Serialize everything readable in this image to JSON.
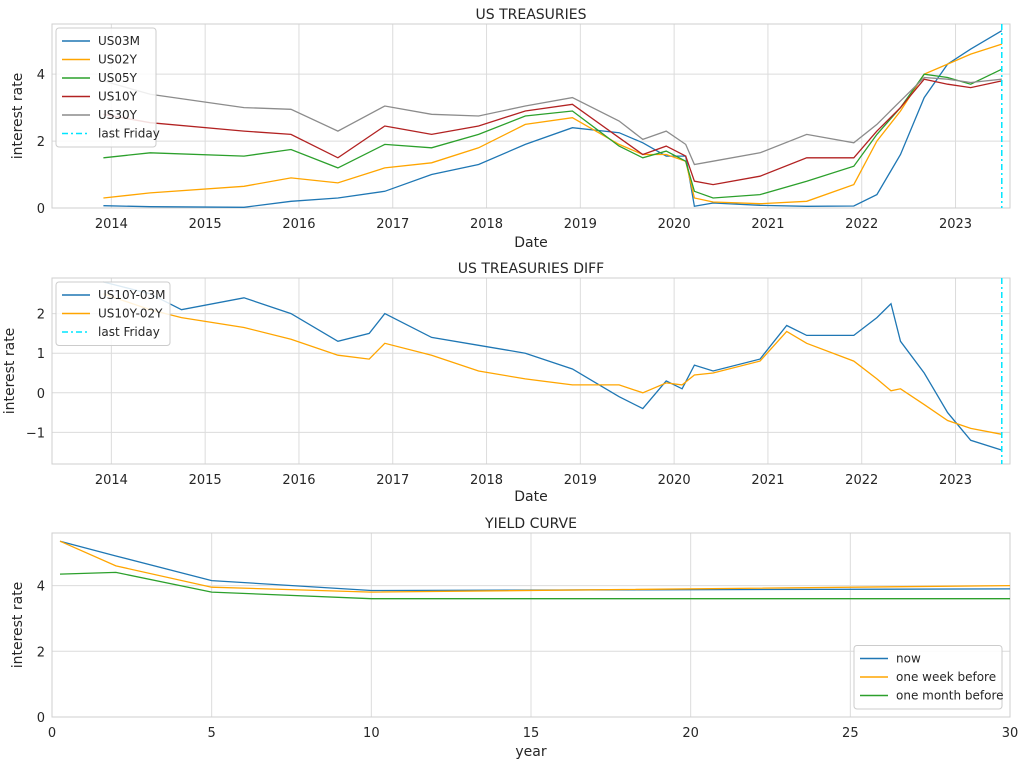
{
  "chart_data": [
    {
      "type": "line",
      "title": "US TREASURIES",
      "xlabel": "Date",
      "ylabel": "interest rate",
      "xlim": [
        "2013-05-15",
        "2023-08-01"
      ],
      "ylim": [
        0,
        5.5
      ],
      "x_ticks": [
        "2014",
        "2015",
        "2016",
        "2017",
        "2018",
        "2019",
        "2020",
        "2021",
        "2022",
        "2023"
      ],
      "y_ticks": [
        0,
        2,
        4
      ],
      "grid": true,
      "legend_position": "upper-left",
      "marker_line": {
        "name": "last Friday",
        "x": "2023-06-30",
        "color": "#00e5ff"
      },
      "series": [
        {
          "name": "US03M",
          "color": "#1f77b4",
          "x": [
            "2013-12-01",
            "2014-06-01",
            "2015-06-01",
            "2015-12-01",
            "2016-06-01",
            "2016-12-01",
            "2017-06-01",
            "2017-12-01",
            "2018-06-01",
            "2018-12-01",
            "2019-06-01",
            "2019-09-01",
            "2019-12-01",
            "2020-02-15",
            "2020-03-20",
            "2020-06-01",
            "2020-12-01",
            "2021-06-01",
            "2021-12-01",
            "2022-03-01",
            "2022-06-01",
            "2022-09-01",
            "2022-12-01",
            "2023-03-01",
            "2023-06-30"
          ],
          "y": [
            0.07,
            0.04,
            0.02,
            0.2,
            0.3,
            0.5,
            1.0,
            1.3,
            1.9,
            2.4,
            2.25,
            1.95,
            1.55,
            1.55,
            0.05,
            0.15,
            0.08,
            0.05,
            0.06,
            0.4,
            1.6,
            3.3,
            4.3,
            4.75,
            5.3
          ]
        },
        {
          "name": "US02Y",
          "color": "#ffa500",
          "x": [
            "2013-12-01",
            "2014-06-01",
            "2015-06-01",
            "2015-12-01",
            "2016-06-01",
            "2016-12-01",
            "2017-06-01",
            "2017-12-01",
            "2018-06-01",
            "2018-12-01",
            "2019-06-01",
            "2019-09-01",
            "2019-12-01",
            "2020-02-15",
            "2020-03-20",
            "2020-06-01",
            "2020-12-01",
            "2021-06-01",
            "2021-12-01",
            "2022-03-01",
            "2022-06-01",
            "2022-09-01",
            "2022-12-01",
            "2023-03-01",
            "2023-06-30"
          ],
          "y": [
            0.3,
            0.45,
            0.65,
            0.9,
            0.75,
            1.2,
            1.35,
            1.8,
            2.5,
            2.7,
            1.9,
            1.6,
            1.6,
            1.4,
            0.3,
            0.18,
            0.13,
            0.2,
            0.7,
            2.0,
            2.9,
            4.0,
            4.3,
            4.6,
            4.9
          ]
        },
        {
          "name": "US05Y",
          "color": "#2ca02c",
          "x": [
            "2013-12-01",
            "2014-06-01",
            "2015-06-01",
            "2015-12-01",
            "2016-06-01",
            "2016-12-01",
            "2017-06-01",
            "2017-12-01",
            "2018-06-01",
            "2018-12-01",
            "2019-06-01",
            "2019-09-01",
            "2019-12-01",
            "2020-02-15",
            "2020-03-20",
            "2020-06-01",
            "2020-12-01",
            "2021-06-01",
            "2021-12-01",
            "2022-03-01",
            "2022-06-01",
            "2022-09-01",
            "2022-12-01",
            "2023-03-01",
            "2023-06-30"
          ],
          "y": [
            1.5,
            1.65,
            1.55,
            1.75,
            1.2,
            1.9,
            1.8,
            2.2,
            2.75,
            2.9,
            1.85,
            1.5,
            1.7,
            1.4,
            0.5,
            0.3,
            0.4,
            0.8,
            1.25,
            2.2,
            3.0,
            4.0,
            3.9,
            3.7,
            4.15
          ]
        },
        {
          "name": "US10Y",
          "color": "#b22222",
          "x": [
            "2013-12-01",
            "2014-06-01",
            "2015-06-01",
            "2015-12-01",
            "2016-06-01",
            "2016-12-01",
            "2017-06-01",
            "2017-12-01",
            "2018-06-01",
            "2018-12-01",
            "2019-06-01",
            "2019-09-01",
            "2019-12-01",
            "2020-02-15",
            "2020-03-20",
            "2020-06-01",
            "2020-12-01",
            "2021-06-01",
            "2021-12-01",
            "2022-03-01",
            "2022-06-01",
            "2022-09-01",
            "2022-12-01",
            "2023-03-01",
            "2023-06-30"
          ],
          "y": [
            2.8,
            2.55,
            2.3,
            2.2,
            1.5,
            2.45,
            2.2,
            2.45,
            2.9,
            3.1,
            2.1,
            1.6,
            1.85,
            1.55,
            0.8,
            0.7,
            0.95,
            1.5,
            1.5,
            2.3,
            3.0,
            3.85,
            3.7,
            3.6,
            3.8
          ]
        },
        {
          "name": "US30Y",
          "color": "#8c8c8c",
          "x": [
            "2013-12-01",
            "2014-06-01",
            "2015-06-01",
            "2015-12-01",
            "2016-06-01",
            "2016-12-01",
            "2017-06-01",
            "2017-12-01",
            "2018-06-01",
            "2018-12-01",
            "2019-06-01",
            "2019-09-01",
            "2019-12-01",
            "2020-02-15",
            "2020-03-20",
            "2020-06-01",
            "2020-12-01",
            "2021-06-01",
            "2021-12-01",
            "2022-03-01",
            "2022-06-01",
            "2022-09-01",
            "2022-12-01",
            "2023-03-01",
            "2023-06-30"
          ],
          "y": [
            3.8,
            3.4,
            3.0,
            2.95,
            2.3,
            3.05,
            2.8,
            2.75,
            3.05,
            3.3,
            2.6,
            2.05,
            2.3,
            1.9,
            1.3,
            1.4,
            1.65,
            2.2,
            1.95,
            2.5,
            3.2,
            3.9,
            3.85,
            3.75,
            3.85
          ]
        }
      ]
    },
    {
      "type": "line",
      "title": "US TREASURIES DIFF",
      "xlabel": "Date",
      "ylabel": "interest rate",
      "xlim": [
        "2013-05-15",
        "2023-08-01"
      ],
      "ylim": [
        -1.8,
        2.9
      ],
      "x_ticks": [
        "2014",
        "2015",
        "2016",
        "2017",
        "2018",
        "2019",
        "2020",
        "2021",
        "2022",
        "2023"
      ],
      "y_ticks": [
        -1,
        0,
        1,
        2
      ],
      "grid": true,
      "legend_position": "upper-left",
      "marker_line": {
        "name": "last Friday",
        "x": "2023-06-30",
        "color": "#00e5ff"
      },
      "series": [
        {
          "name": "US10Y-03M",
          "color": "#1f77b4",
          "x": [
            "2013-12-01",
            "2014-06-01",
            "2014-10-01",
            "2015-06-01",
            "2015-12-01",
            "2016-06-01",
            "2016-10-01",
            "2016-12-01",
            "2017-06-01",
            "2017-12-01",
            "2018-06-01",
            "2018-12-01",
            "2019-06-01",
            "2019-09-01",
            "2019-12-01",
            "2020-02-01",
            "2020-03-20",
            "2020-06-01",
            "2020-12-01",
            "2021-03-15",
            "2021-06-01",
            "2021-12-01",
            "2022-03-01",
            "2022-04-25",
            "2022-06-01",
            "2022-09-01",
            "2022-12-01",
            "2023-03-01",
            "2023-06-30"
          ],
          "y": [
            2.8,
            2.5,
            2.1,
            2.4,
            2.0,
            1.3,
            1.5,
            2.0,
            1.4,
            1.2,
            1.0,
            0.6,
            -0.1,
            -0.4,
            0.3,
            0.1,
            0.7,
            0.55,
            0.85,
            1.7,
            1.45,
            1.45,
            1.9,
            2.25,
            1.3,
            0.5,
            -0.5,
            -1.2,
            -1.45
          ]
        },
        {
          "name": "US10Y-02Y",
          "color": "#ffa500",
          "x": [
            "2013-12-01",
            "2014-06-01",
            "2014-10-01",
            "2015-06-01",
            "2015-12-01",
            "2016-06-01",
            "2016-10-01",
            "2016-12-01",
            "2017-06-01",
            "2017-12-01",
            "2018-06-01",
            "2018-12-01",
            "2019-06-01",
            "2019-09-01",
            "2019-12-01",
            "2020-02-01",
            "2020-03-20",
            "2020-06-01",
            "2020-12-01",
            "2021-03-15",
            "2021-06-01",
            "2021-12-01",
            "2022-03-01",
            "2022-04-25",
            "2022-06-01",
            "2022-09-01",
            "2022-12-01",
            "2023-03-01",
            "2023-06-30"
          ],
          "y": [
            2.5,
            2.1,
            1.9,
            1.65,
            1.35,
            0.95,
            0.85,
            1.25,
            0.95,
            0.55,
            0.35,
            0.2,
            0.2,
            0.0,
            0.25,
            0.2,
            0.45,
            0.5,
            0.8,
            1.55,
            1.25,
            0.8,
            0.35,
            0.05,
            0.1,
            -0.3,
            -0.7,
            -0.9,
            -1.05
          ]
        }
      ]
    },
    {
      "type": "line",
      "title": "YIELD CURVE",
      "xlabel": "year",
      "ylabel": "interest rate",
      "xlim": [
        0,
        30
      ],
      "ylim": [
        0,
        5.6
      ],
      "x_ticks": [
        0,
        5,
        10,
        15,
        20,
        25,
        30
      ],
      "y_ticks": [
        0,
        2,
        4
      ],
      "grid": true,
      "legend_position": "lower-right",
      "series": [
        {
          "name": "now",
          "color": "#1f77b4",
          "x": [
            0.25,
            2,
            5,
            10,
            30
          ],
          "y": [
            5.35,
            4.9,
            4.15,
            3.85,
            3.9
          ]
        },
        {
          "name": "one week before",
          "color": "#ffa500",
          "x": [
            0.25,
            2,
            5,
            10,
            30
          ],
          "y": [
            5.35,
            4.6,
            3.95,
            3.8,
            4.0
          ]
        },
        {
          "name": "one month before",
          "color": "#2ca02c",
          "x": [
            0.25,
            2,
            5,
            10,
            30
          ],
          "y": [
            4.35,
            4.4,
            3.8,
            3.6,
            3.6
          ]
        }
      ]
    }
  ]
}
